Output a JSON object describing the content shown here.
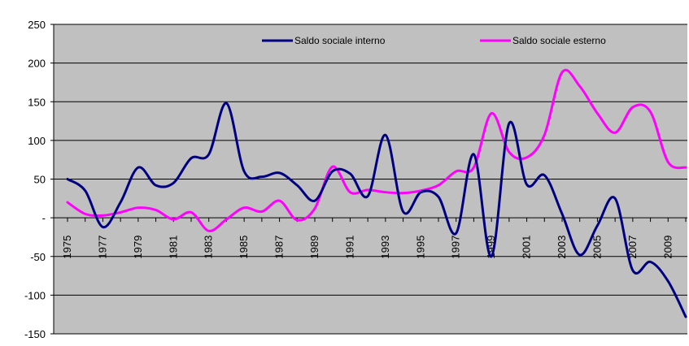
{
  "chart_data": {
    "type": "line",
    "title": "",
    "xlabel": "",
    "ylabel": "",
    "ylim": [
      -150,
      250
    ],
    "yticks": [
      250,
      200,
      150,
      100,
      50,
      0,
      -50,
      -100,
      -150
    ],
    "ytick_labels": [
      "250",
      "200",
      "150",
      "100",
      "50",
      "-",
      "-50",
      "-100",
      "-150"
    ],
    "x": [
      1975,
      1976,
      1977,
      1978,
      1979,
      1980,
      1981,
      1982,
      1983,
      1984,
      1985,
      1986,
      1987,
      1988,
      1989,
      1990,
      1991,
      1992,
      1993,
      1994,
      1995,
      1996,
      1997,
      1998,
      1999,
      2000,
      2001,
      2002,
      2003,
      2004,
      2005,
      2006,
      2007,
      2008,
      2009,
      2010
    ],
    "xtick_labels": [
      "1975",
      "1977",
      "1979",
      "1981",
      "1983",
      "1985",
      "1987",
      "1989",
      "1991",
      "1993",
      "1995",
      "1997",
      "1999",
      "2001",
      "2003",
      "2005",
      "2007",
      "2009"
    ],
    "grid": true,
    "legend_position": "top",
    "background": "#c0c0c0",
    "series": [
      {
        "name": "Saldo sociale interno",
        "color": "#000080",
        "values": [
          50,
          35,
          -12,
          20,
          65,
          42,
          45,
          77,
          82,
          148,
          60,
          53,
          58,
          42,
          22,
          60,
          57,
          28,
          107,
          8,
          33,
          27,
          -20,
          82,
          -50,
          122,
          43,
          55,
          5,
          -48,
          -10,
          25,
          -68,
          -57,
          -82,
          -128
        ]
      },
      {
        "name": "Saldo sociale esterno",
        "color": "#ff00ff",
        "values": [
          20,
          5,
          3,
          7,
          13,
          10,
          -2,
          7,
          -17,
          -2,
          13,
          8,
          22,
          -3,
          12,
          66,
          33,
          36,
          33,
          32,
          35,
          42,
          60,
          65,
          135,
          85,
          78,
          107,
          188,
          170,
          135,
          110,
          143,
          137,
          72,
          65
        ]
      }
    ]
  }
}
